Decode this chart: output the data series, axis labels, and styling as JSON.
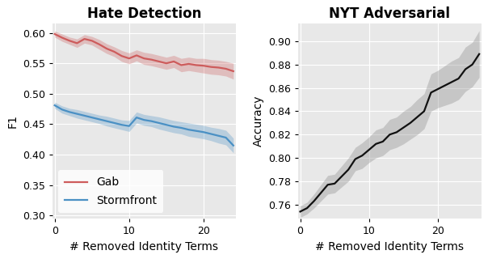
{
  "title_left": "Hate Detection",
  "title_right": "NYT Adversarial",
  "xlabel": "# Removed Identity Terms",
  "ylabel_left": "F1",
  "ylabel_right": "Accuracy",
  "background_color": "#e8e8e8",
  "gab_color": "#cd5c5c",
  "stormfront_color": "#4a90c4",
  "nyt_color": "#111111",
  "gab_fill_alpha": 0.3,
  "stormfront_fill_alpha": 0.3,
  "nyt_fill_alpha": 0.35,
  "gab_y": [
    0.598,
    0.592,
    0.587,
    0.583,
    0.59,
    0.587,
    0.581,
    0.574,
    0.569,
    0.562,
    0.558,
    0.563,
    0.558,
    0.556,
    0.553,
    0.55,
    0.553,
    0.547,
    0.549,
    0.547,
    0.546,
    0.544,
    0.543,
    0.541,
    0.537
  ],
  "gab_std": [
    0.005,
    0.006,
    0.006,
    0.007,
    0.007,
    0.007,
    0.008,
    0.008,
    0.008,
    0.009,
    0.009,
    0.009,
    0.01,
    0.01,
    0.01,
    0.01,
    0.01,
    0.011,
    0.011,
    0.011,
    0.012,
    0.012,
    0.012,
    0.012,
    0.013
  ],
  "storm_y": [
    0.481,
    0.474,
    0.47,
    0.467,
    0.464,
    0.461,
    0.458,
    0.455,
    0.452,
    0.449,
    0.447,
    0.461,
    0.457,
    0.455,
    0.452,
    0.449,
    0.446,
    0.444,
    0.441,
    0.439,
    0.437,
    0.434,
    0.431,
    0.428,
    0.415
  ],
  "storm_std": [
    0.005,
    0.006,
    0.006,
    0.007,
    0.007,
    0.007,
    0.007,
    0.008,
    0.008,
    0.008,
    0.009,
    0.009,
    0.009,
    0.009,
    0.01,
    0.01,
    0.01,
    0.01,
    0.011,
    0.011,
    0.011,
    0.011,
    0.012,
    0.012,
    0.012
  ],
  "nyt_y": [
    0.754,
    0.757,
    0.763,
    0.77,
    0.777,
    0.778,
    0.784,
    0.79,
    0.799,
    0.802,
    0.807,
    0.812,
    0.814,
    0.82,
    0.822,
    0.826,
    0.83,
    0.835,
    0.84,
    0.856,
    0.859,
    0.862,
    0.865,
    0.868,
    0.876,
    0.88,
    0.889
  ],
  "nyt_std": [
    0.005,
    0.005,
    0.006,
    0.007,
    0.008,
    0.008,
    0.009,
    0.01,
    0.01,
    0.011,
    0.011,
    0.012,
    0.012,
    0.013,
    0.013,
    0.014,
    0.014,
    0.015,
    0.015,
    0.016,
    0.016,
    0.017,
    0.018,
    0.018,
    0.019,
    0.019,
    0.02
  ],
  "left_ylim": [
    0.295,
    0.615
  ],
  "right_ylim": [
    0.748,
    0.915
  ],
  "left_yticks": [
    0.3,
    0.35,
    0.4,
    0.45,
    0.5,
    0.55,
    0.6
  ],
  "right_yticks": [
    0.76,
    0.78,
    0.8,
    0.82,
    0.84,
    0.86,
    0.88,
    0.9
  ],
  "left_xlim": [
    -0.3,
    24.3
  ],
  "right_xlim": [
    -0.3,
    26.3
  ],
  "xticks": [
    0,
    10,
    20
  ],
  "legend_labels": [
    "Gab",
    "Stormfront"
  ],
  "title_fontsize": 12,
  "label_fontsize": 10,
  "tick_fontsize": 9,
  "linewidth": 1.6,
  "figsize": [
    6.04,
    3.2
  ],
  "dpi": 100
}
